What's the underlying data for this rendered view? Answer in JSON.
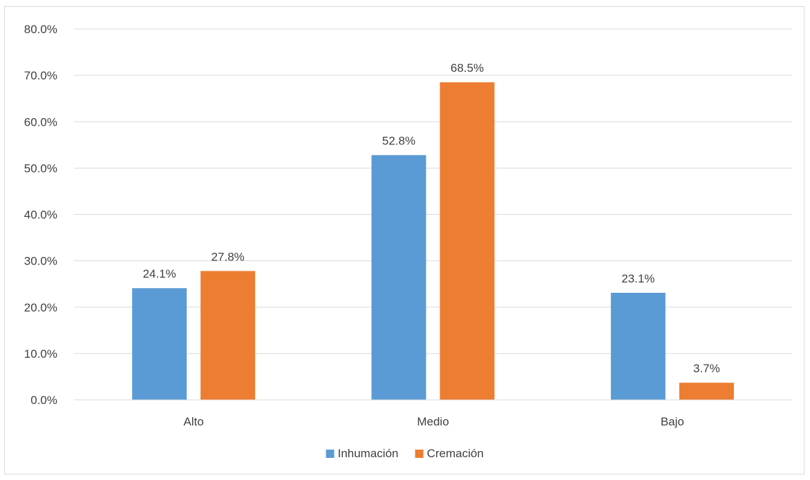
{
  "chart_data": {
    "type": "bar",
    "categories": [
      "Alto",
      "Medio",
      "Bajo"
    ],
    "series": [
      {
        "name": "Inhumación",
        "values": [
          24.1,
          52.8,
          23.1
        ],
        "labels": [
          "24.1%",
          "52.8%",
          "23.1%"
        ],
        "color": "#5b9bd5"
      },
      {
        "name": "Cremación",
        "values": [
          27.8,
          68.5,
          3.7
        ],
        "labels": [
          "27.8%",
          "68.5%",
          "3.7%"
        ],
        "color": "#ed7d31"
      }
    ],
    "ylim": [
      0,
      80
    ],
    "yticks": [
      0,
      10,
      20,
      30,
      40,
      50,
      60,
      70,
      80
    ],
    "ytick_labels": [
      "0.0%",
      "10.0%",
      "20.0%",
      "30.0%",
      "40.0%",
      "50.0%",
      "60.0%",
      "70.0%",
      "80.0%"
    ],
    "grid": true,
    "legend_position": "bottom",
    "title": "",
    "xlabel": "",
    "ylabel": ""
  }
}
